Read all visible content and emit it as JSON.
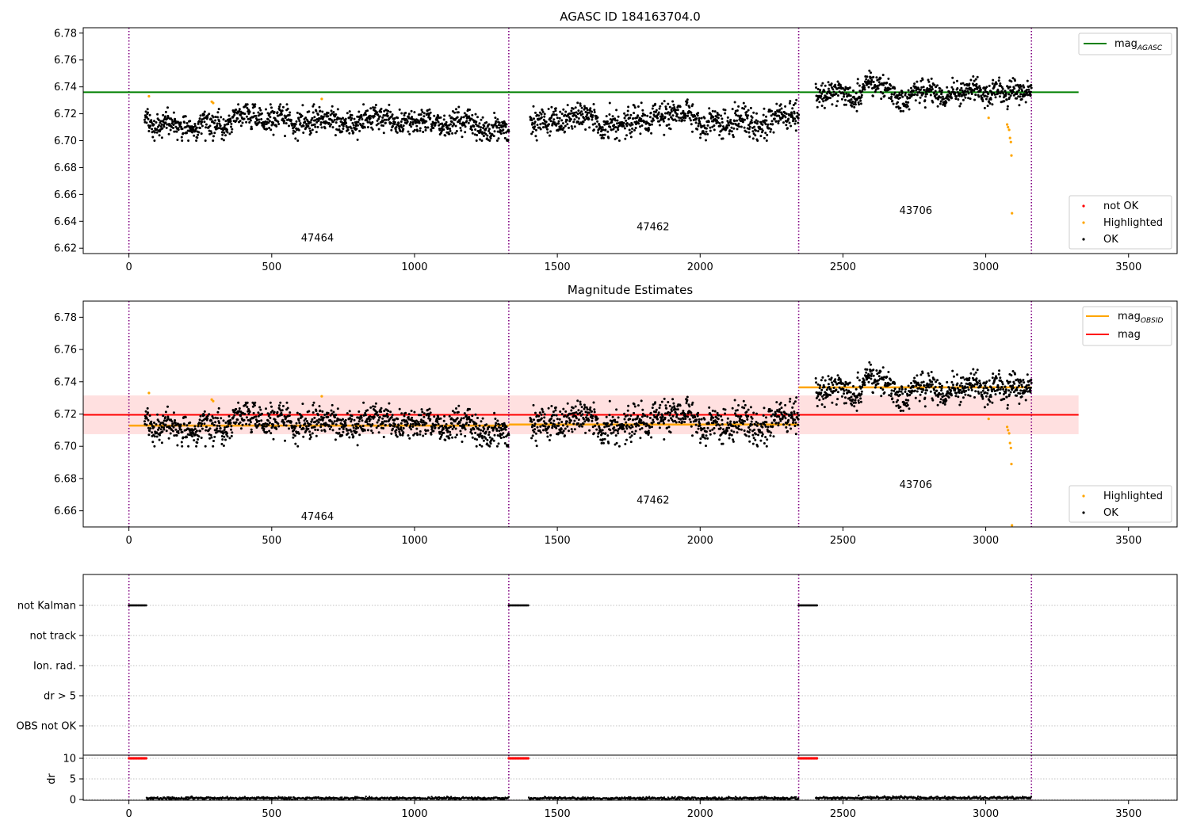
{
  "chart_data": [
    {
      "type": "scatter",
      "title": "AGASC ID 184163704.0",
      "xlabel": "",
      "ylabel": "",
      "xlim": [
        -160,
        3670
      ],
      "ylim": [
        6.616,
        6.784
      ],
      "xticks": [
        0,
        500,
        1000,
        1500,
        2000,
        2500,
        3000,
        3500
      ],
      "yticks": [
        6.62,
        6.64,
        6.66,
        6.68,
        6.7,
        6.72,
        6.74,
        6.76,
        6.78
      ],
      "grid": false,
      "obsid_boundaries": [
        0,
        1330,
        2345,
        3160
      ],
      "obsid_labels": [
        {
          "text": "47464",
          "x": 660,
          "y": 6.625
        },
        {
          "text": "47462",
          "x": 1835,
          "y": 6.6335
        },
        {
          "text": "43706",
          "x": 2755,
          "y": 6.6455
        }
      ],
      "segments": [
        {
          "obsid": "47464",
          "x_start": 55,
          "x_end": 1330,
          "mean": 6.713,
          "spread": 0.0045,
          "clip": [
            6.7,
            6.727
          ]
        },
        {
          "obsid": "47462",
          "x_start": 1405,
          "x_end": 2345,
          "mean": 6.714,
          "spread": 0.0045,
          "clip": [
            6.7,
            6.731
          ]
        },
        {
          "obsid": "43706",
          "x_start": 2405,
          "x_end": 3160,
          "mean": 6.737,
          "spread": 0.0042,
          "clip": [
            6.722,
            6.752
          ]
        }
      ],
      "lines": [
        {
          "name": "mag_AGASC",
          "value": 6.736,
          "x_start": -160,
          "x_end": 3325,
          "color": "#008000"
        }
      ],
      "series": [
        {
          "name": "not OK",
          "color": "#ff0000",
          "points": []
        },
        {
          "name": "Highlighted",
          "color": "#ffa500",
          "points": [
            [
              70,
              6.733
            ],
            [
              290,
              6.729
            ],
            [
              295,
              6.728
            ],
            [
              675,
              6.731
            ],
            [
              3010,
              6.717
            ],
            [
              3075,
              6.712
            ],
            [
              3078,
              6.71
            ],
            [
              3082,
              6.708
            ],
            [
              3085,
              6.702
            ],
            [
              3088,
              6.699
            ],
            [
              3090,
              6.689
            ],
            [
              3092,
              6.646
            ]
          ]
        },
        {
          "name": "OK",
          "color": "#000000",
          "points": "generated from segments"
        }
      ],
      "legend_lines": {
        "position": "upper right",
        "entries": [
          {
            "label": "mag",
            "sub": "AGASC",
            "color": "#008000"
          }
        ]
      },
      "legend_points": {
        "position": "lower right",
        "entries": [
          {
            "label": "not OK",
            "color": "#ff0000"
          },
          {
            "label": "Highlighted",
            "color": "#ffa500"
          },
          {
            "label": "OK",
            "color": "#000000"
          }
        ]
      }
    },
    {
      "type": "scatter",
      "title": "Magnitude Estimates",
      "xlabel": "",
      "ylabel": "",
      "xlim": [
        -160,
        3670
      ],
      "ylim": [
        6.65,
        6.79
      ],
      "xticks": [
        0,
        500,
        1000,
        1500,
        2000,
        2500,
        3000,
        3500
      ],
      "yticks": [
        6.66,
        6.68,
        6.7,
        6.72,
        6.74,
        6.76,
        6.78
      ],
      "grid": false,
      "obsid_boundaries": [
        0,
        1330,
        2345,
        3160
      ],
      "obsid_labels": [
        {
          "text": "47464",
          "x": 660,
          "y": 6.6545
        },
        {
          "text": "47462",
          "x": 1835,
          "y": 6.6645
        },
        {
          "text": "43706",
          "x": 2755,
          "y": 6.674
        }
      ],
      "band": {
        "low": 6.7075,
        "high": 6.7315,
        "x_start": -160,
        "x_end": 3325,
        "color": "#ffcccc"
      },
      "lines": [
        {
          "name": "mag_OBSID",
          "color": "#ffa500",
          "steps": [
            [
              0,
              1330,
              6.7128
            ],
            [
              1330,
              2345,
              6.7135
            ],
            [
              2345,
              3160,
              6.7365
            ]
          ]
        },
        {
          "name": "mag",
          "value": 6.7195,
          "x_start": -160,
          "x_end": 3325,
          "color": "#ff0000"
        }
      ],
      "series": [
        {
          "name": "Highlighted",
          "color": "#ffa500",
          "points": [
            [
              70,
              6.733
            ],
            [
              290,
              6.729
            ],
            [
              295,
              6.728
            ],
            [
              675,
              6.731
            ],
            [
              3010,
              6.717
            ],
            [
              3075,
              6.712
            ],
            [
              3078,
              6.71
            ],
            [
              3082,
              6.708
            ],
            [
              3085,
              6.702
            ],
            [
              3088,
              6.699
            ],
            [
              3090,
              6.689
            ],
            [
              3092,
              6.651
            ]
          ]
        },
        {
          "name": "OK",
          "color": "#000000",
          "points": "generated from segments"
        }
      ],
      "legend_lines": {
        "position": "upper right",
        "entries": [
          {
            "label": "mag",
            "sub": "OBSID",
            "color": "#ffa500"
          },
          {
            "label": "mag",
            "sub": "",
            "color": "#ff0000"
          }
        ]
      },
      "legend_points": {
        "position": "lower right",
        "entries": [
          {
            "label": "Highlighted",
            "color": "#ffa500"
          },
          {
            "label": "OK",
            "color": "#000000"
          }
        ]
      }
    },
    {
      "type": "scatter",
      "title": "",
      "xlim": [
        -160,
        3670
      ],
      "xticks": [
        0,
        500,
        1000,
        1500,
        2000,
        2500,
        3000,
        3500
      ],
      "flag_rows": [
        "not Kalman",
        "not track",
        "Ion. rad.",
        "dr > 5",
        "OBS not OK"
      ],
      "flag_segments": [
        {
          "row": "not Kalman",
          "x_start": 0,
          "x_end": 62
        },
        {
          "row": "not Kalman",
          "x_start": 1330,
          "x_end": 1400
        },
        {
          "row": "not Kalman",
          "x_start": 2345,
          "x_end": 2410
        }
      ],
      "dr_ylabel": "dr",
      "dr_yticks": [
        0,
        5,
        10
      ],
      "dr_segments_high": [
        {
          "x_start": 0,
          "x_end": 62,
          "value": 10
        },
        {
          "x_start": 1330,
          "x_end": 1400,
          "value": 10
        },
        {
          "x_start": 2345,
          "x_end": 2410,
          "value": 10
        }
      ],
      "dr_segments_low": [
        {
          "x_start": 62,
          "x_end": 1330,
          "value": 0.3
        },
        {
          "x_start": 1400,
          "x_end": 2345,
          "value": 0.3
        },
        {
          "x_start": 2405,
          "x_end": 3160,
          "value": 0.4
        }
      ],
      "obsid_boundaries": [
        0,
        1330,
        2345,
        3160
      ]
    }
  ]
}
